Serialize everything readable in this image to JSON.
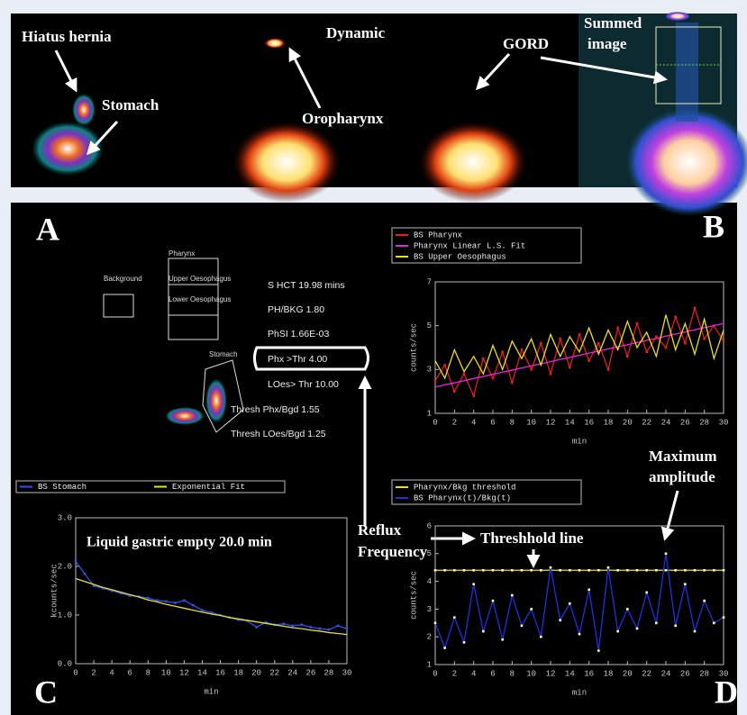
{
  "top_panel": {
    "hiatus_hernia": "Hiatus hernia",
    "stomach": "Stomach",
    "dynamic": "Dynamic",
    "oropharynx": "Oropharynx",
    "gord": "GORD",
    "summed": [
      "Summed",
      "image"
    ]
  },
  "panel_letters": [
    "A",
    "B",
    "C",
    "D"
  ],
  "panel_a": {
    "background": "Background",
    "pharynx": "Pharynx",
    "upper_oesophagus": "Upper Oesophagus",
    "lower_oesophagus": "Lower Oesophagus",
    "stomach": "Stomach",
    "stats": [
      "S HCT  19.98 mins",
      "PH/BKG   1.80",
      "PhSI  1.66E-03",
      "Phx >Thr 4.00",
      "LOes> Thr 10.00",
      "Thresh Phx/Bgd 1.55",
      "Thresh LOes/Bgd 1.25"
    ]
  },
  "annotations": {
    "reflux": [
      "Reflux",
      "Frequency"
    ],
    "threshold_line": "Threshhold line",
    "maximum": [
      "Maximum",
      "amplitude"
    ]
  },
  "chart_data": [
    {
      "type": "line",
      "xlabel": "min",
      "ylabel": "counts/sec",
      "x": [
        0,
        1,
        2,
        3,
        4,
        5,
        6,
        7,
        8,
        9,
        10,
        11,
        12,
        13,
        14,
        15,
        16,
        17,
        18,
        19,
        20,
        21,
        22,
        23,
        24,
        25,
        26,
        27,
        28,
        29,
        30
      ],
      "xlim": [
        0,
        30
      ],
      "xticks": [
        0,
        2,
        4,
        6,
        8,
        10,
        12,
        14,
        16,
        18,
        20,
        22,
        24,
        26,
        28,
        30
      ],
      "ylim": [
        1,
        7
      ],
      "yticks": [
        1,
        3,
        5,
        7
      ],
      "legend": "vertical",
      "series": [
        {
          "name": "BS Pharynx",
          "color": "#e0201c",
          "markers": true,
          "values": [
            2.5,
            3.2,
            2.0,
            2.8,
            1.8,
            3.5,
            2.6,
            3.8,
            2.4,
            3.9,
            3.0,
            4.2,
            2.8,
            4.4,
            3.1,
            4.6,
            3.4,
            4.2,
            3.0,
            4.9,
            3.6,
            5.1,
            3.8,
            4.5,
            4.0,
            5.4,
            4.2,
            5.8,
            4.4,
            5.0,
            4.3
          ]
        },
        {
          "name": "Pharynx Linear L.S. Fit",
          "color": "#f020e0",
          "markers": false,
          "values": [
            2.2,
            2.3,
            2.39,
            2.49,
            2.59,
            2.68,
            2.78,
            2.88,
            2.97,
            3.07,
            3.17,
            3.26,
            3.36,
            3.46,
            3.55,
            3.65,
            3.75,
            3.84,
            3.94,
            4.04,
            4.13,
            4.23,
            4.33,
            4.42,
            4.52,
            4.62,
            4.71,
            4.81,
            4.91,
            5.0,
            5.1
          ]
        },
        {
          "name": "BS Upper Oesophagus",
          "color": "#e8e020",
          "markers": false,
          "values": [
            3.4,
            2.6,
            3.9,
            2.9,
            3.6,
            2.8,
            4.1,
            3.0,
            4.3,
            3.5,
            4.4,
            3.2,
            4.6,
            3.6,
            4.5,
            3.8,
            4.9,
            3.7,
            4.8,
            3.9,
            5.2,
            4.0,
            4.7,
            3.6,
            5.5,
            3.9,
            5.1,
            3.7,
            5.3,
            3.5,
            4.8
          ]
        }
      ]
    },
    {
      "type": "line",
      "title": "Liquid gastric empty 20.0 min",
      "xlabel": "min",
      "ylabel": "kcounts/sec",
      "x": [
        0,
        1,
        2,
        3,
        4,
        5,
        6,
        7,
        8,
        9,
        10,
        11,
        12,
        13,
        14,
        15,
        16,
        17,
        18,
        19,
        20,
        21,
        22,
        23,
        24,
        25,
        26,
        27,
        28,
        29,
        30
      ],
      "xlim": [
        0,
        30
      ],
      "xticks": [
        0,
        2,
        4,
        6,
        8,
        10,
        12,
        14,
        16,
        18,
        20,
        22,
        24,
        26,
        28,
        30
      ],
      "ylim": [
        0,
        3
      ],
      "yticks": [
        {
          "value": 0,
          "label": "0.0"
        },
        {
          "value": 1,
          "label": "1.0"
        },
        {
          "value": 2,
          "label": "2.0"
        },
        {
          "value": 3,
          "label": "3.0"
        }
      ],
      "legend": "horizontal",
      "series": [
        {
          "name": "BS Stomach",
          "color": "#3050f0",
          "markers": true,
          "values": [
            2.1,
            1.85,
            1.6,
            1.55,
            1.5,
            1.45,
            1.4,
            1.38,
            1.35,
            1.3,
            1.28,
            1.25,
            1.3,
            1.2,
            1.1,
            1.05,
            1.0,
            0.95,
            0.9,
            0.88,
            0.75,
            0.85,
            0.8,
            0.82,
            0.78,
            0.8,
            0.75,
            0.72,
            0.7,
            0.78,
            0.72
          ]
        },
        {
          "name": "Exponential Fit",
          "color": "#e8e020",
          "markers": false,
          "values": [
            1.75,
            1.69,
            1.63,
            1.57,
            1.52,
            1.47,
            1.42,
            1.37,
            1.31,
            1.27,
            1.22,
            1.18,
            1.14,
            1.1,
            1.06,
            1.02,
            0.99,
            0.95,
            0.92,
            0.89,
            0.86,
            0.83,
            0.8,
            0.77,
            0.74,
            0.72,
            0.69,
            0.67,
            0.64,
            0.62,
            0.6
          ]
        }
      ]
    },
    {
      "type": "line",
      "xlabel": "min",
      "ylabel": "counts/sec",
      "x": [
        0,
        1,
        2,
        3,
        4,
        5,
        6,
        7,
        8,
        9,
        10,
        11,
        12,
        13,
        14,
        15,
        16,
        17,
        18,
        19,
        20,
        21,
        22,
        23,
        24,
        25,
        26,
        27,
        28,
        29,
        30
      ],
      "xlim": [
        0,
        30
      ],
      "xticks": [
        0,
        2,
        4,
        6,
        8,
        10,
        12,
        14,
        16,
        18,
        20,
        22,
        24,
        26,
        28,
        30
      ],
      "ylim": [
        1,
        6
      ],
      "yticks": [
        1,
        2,
        3,
        4,
        5,
        6
      ],
      "legend": "vertical",
      "series": [
        {
          "name": "Pharynx/Bkg threshold",
          "color": "#e8e020",
          "markers": true,
          "values": [
            4.4,
            4.4,
            4.4,
            4.4,
            4.4,
            4.4,
            4.4,
            4.4,
            4.4,
            4.4,
            4.4,
            4.4,
            4.4,
            4.4,
            4.4,
            4.4,
            4.4,
            4.4,
            4.4,
            4.4,
            4.4,
            4.4,
            4.4,
            4.4,
            4.4,
            4.4,
            4.4,
            4.4,
            4.4,
            4.4,
            4.4
          ]
        },
        {
          "name": "BS Pharynx(t)/Bkg(t)",
          "color": "#2030e0",
          "markers": true,
          "values": [
            2.5,
            1.6,
            2.7,
            1.8,
            3.9,
            2.2,
            3.3,
            1.9,
            3.5,
            2.4,
            3.0,
            2.0,
            4.5,
            2.6,
            3.2,
            2.1,
            3.7,
            1.5,
            4.5,
            2.2,
            3.0,
            2.3,
            3.6,
            2.5,
            5.0,
            2.4,
            3.9,
            2.2,
            3.3,
            2.5,
            2.7
          ]
        }
      ]
    }
  ]
}
